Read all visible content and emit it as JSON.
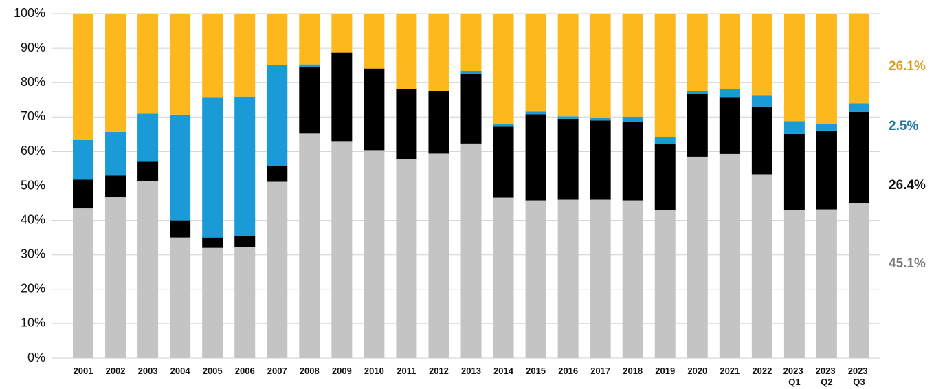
{
  "chart_data": {
    "type": "stacked_bar_100",
    "categories": [
      "2001",
      "2002",
      "2003",
      "2004",
      "2005",
      "2006",
      "2007",
      "2008",
      "2009",
      "2010",
      "2011",
      "2012",
      "2013",
      "2014",
      "2015",
      "2016",
      "2017",
      "2018",
      "2019",
      "2020",
      "2021",
      "2022",
      "2023 Q1",
      "2023 Q2",
      "2023 Q3"
    ],
    "series": [
      {
        "color": "#c4c4c4",
        "label_color": "#7a7a7a",
        "values": [
          43.5,
          46.7,
          51.5,
          35,
          32,
          32.2,
          51.2,
          65.2,
          63,
          60.4,
          57.8,
          59.4,
          62.3,
          46.6,
          45.8,
          46,
          46,
          45.8,
          43,
          58.5,
          59.3,
          53.4,
          43,
          43.2,
          45.1
        ],
        "value_labels": [
          null,
          null,
          null,
          null,
          null,
          null,
          null,
          null,
          null,
          null,
          null,
          null,
          null,
          null,
          null,
          null,
          null,
          null,
          null,
          null,
          null,
          null,
          null,
          null,
          "45.1%"
        ]
      },
      {
        "color": "#000000",
        "label_color": "#111111",
        "values": [
          8.3,
          6.3,
          5.7,
          5,
          3,
          3.3,
          4.6,
          19.4,
          25.7,
          23.7,
          20.4,
          18.1,
          20.3,
          20.6,
          25,
          23.5,
          23,
          22.7,
          19.2,
          18.2,
          16.5,
          19.7,
          22.1,
          22.9,
          26.4
        ],
        "value_labels": [
          null,
          null,
          null,
          null,
          null,
          null,
          null,
          null,
          null,
          null,
          null,
          null,
          null,
          null,
          null,
          null,
          null,
          null,
          null,
          null,
          null,
          null,
          null,
          null,
          "26.4%"
        ]
      },
      {
        "color": "#1a9ad6",
        "label_color": "#1f7aa3",
        "values": [
          11.5,
          12.7,
          13.8,
          30.7,
          40.8,
          40.4,
          29.3,
          0.7,
          0,
          0,
          0,
          0,
          0.7,
          0.7,
          0.8,
          0.7,
          0.8,
          1.6,
          2,
          0.9,
          2.4,
          3.3,
          3.7,
          1.9,
          2.5
        ],
        "value_labels": [
          null,
          null,
          null,
          null,
          null,
          null,
          null,
          null,
          null,
          null,
          null,
          null,
          null,
          null,
          null,
          null,
          null,
          null,
          null,
          null,
          null,
          null,
          null,
          null,
          "2.5%"
        ]
      },
      {
        "color": "#fdb81e",
        "label_color": "#d49d1c",
        "values": [
          36.7,
          34.3,
          29,
          29.3,
          24.2,
          24.1,
          14.9,
          14.7,
          11.3,
          15.9,
          21.8,
          22.5,
          16.7,
          32.1,
          28.4,
          29.8,
          30.2,
          29.9,
          35.8,
          22.4,
          21.8,
          23.6,
          31.2,
          32,
          26.1
        ],
        "value_labels": [
          null,
          null,
          null,
          null,
          null,
          null,
          null,
          null,
          null,
          null,
          null,
          null,
          null,
          null,
          null,
          null,
          null,
          null,
          null,
          null,
          null,
          null,
          null,
          null,
          "26.1%"
        ]
      }
    ],
    "ylim": [
      0,
      100
    ],
    "yticks": [
      {
        "value": 0,
        "label": "0%"
      },
      {
        "value": 10,
        "label": "10%"
      },
      {
        "value": 20,
        "label": "20%"
      },
      {
        "value": 30,
        "label": "30%"
      },
      {
        "value": 40,
        "label": "40%"
      },
      {
        "value": 50,
        "label": "50%"
      },
      {
        "value": 60,
        "label": "60%"
      },
      {
        "value": 70,
        "label": "70%"
      },
      {
        "value": 80,
        "label": "80%"
      },
      {
        "value": 90,
        "label": "90%"
      },
      {
        "value": 100,
        "label": "100%"
      }
    ],
    "grid": true
  }
}
